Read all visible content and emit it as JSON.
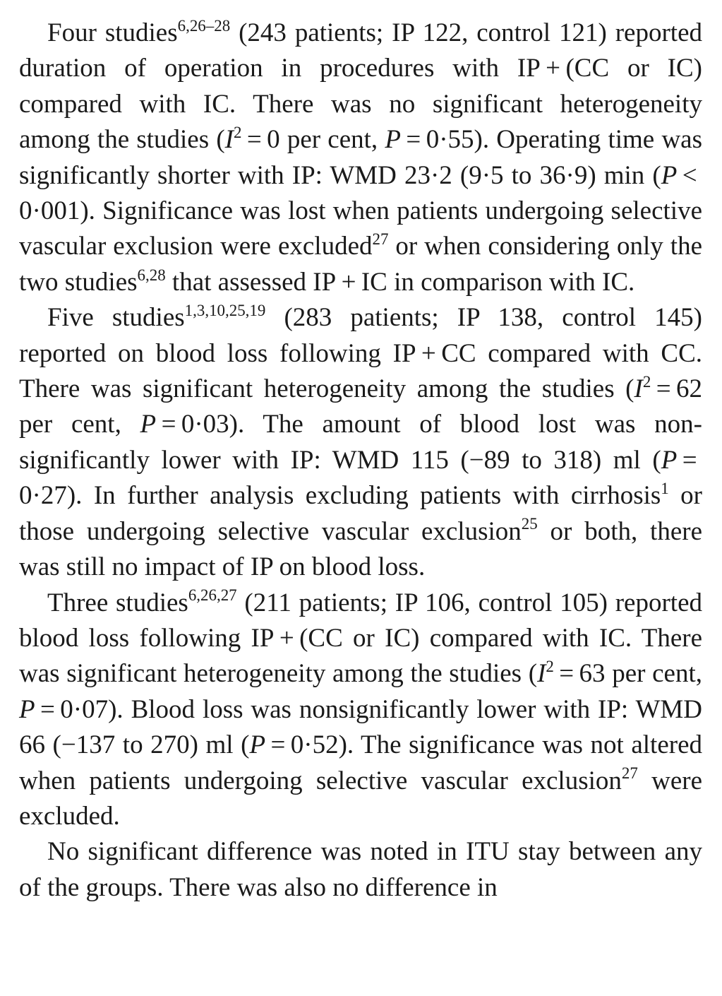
{
  "paragraphs": [
    [
      {
        "t": "Four studies"
      },
      {
        "sup": "6,26–28"
      },
      {
        "t": " (243 patients; IP 122, control 121) reported duration of operation in procedures with IP + (CC or IC) compared with IC. There was no sig­nificant heterogeneity among the studies ("
      },
      {
        "i": "I"
      },
      {
        "sup": "2"
      },
      {
        "t": " = 0 per cent, "
      },
      {
        "i": "P"
      },
      {
        "t": " = 0·55). Operating time was significantly shorter with IP: WMD 23·2 (9·5 to 36·9) min ("
      },
      {
        "i": "P"
      },
      {
        "t": " < 0·001). Significance was lost when patients undergoing selective vascular exclusion were excluded"
      },
      {
        "sup": "27"
      },
      {
        "t": " or when considering only the two studies"
      },
      {
        "sup": "6,28"
      },
      {
        "t": " that assessed IP + IC in comparison with IC."
      }
    ],
    [
      {
        "t": "Five studies"
      },
      {
        "sup": "1,3,10,25,19"
      },
      {
        "t": " (283 patients; IP 138, control 145) reported on blood loss following IP + CC compared with CC. There was significant heterogeneity among the studies ("
      },
      {
        "i": "I"
      },
      {
        "sup": "2"
      },
      {
        "t": " = 62 per cent, "
      },
      {
        "i": "P"
      },
      {
        "t": " = 0·03). The amount of blood lost was non-significantly lower with IP: WMD 115 (−89 to 318) ml ("
      },
      {
        "i": "P"
      },
      {
        "t": " = 0·27). In further analysis excluding patients with cirrhosis"
      },
      {
        "sup": "1"
      },
      {
        "t": " or those undergoing selective vascular exclusion"
      },
      {
        "sup": "25"
      },
      {
        "t": " or both, there was still no impact of IP on blood loss."
      }
    ],
    [
      {
        "t": "Three studies"
      },
      {
        "sup": "6,26,27"
      },
      {
        "t": " (211 patients; IP 106, control 105) reported blood loss following IP + (CC or IC) compared with IC. There was significant heterogeneity among the studies ("
      },
      {
        "i": "I"
      },
      {
        "sup": "2"
      },
      {
        "t": " = 63 per cent, "
      },
      {
        "i": "P"
      },
      {
        "t": " = 0·07). Blood loss was non­significantly lower with IP: WMD 66 (−137 to 270) ml ("
      },
      {
        "i": "P"
      },
      {
        "t": " = 0·52). The significance was not altered when patients undergoing selective vascular exclusion"
      },
      {
        "sup": "27"
      },
      {
        "t": " were excluded."
      }
    ],
    [
      {
        "t": "No significant difference was noted in ITU stay between any of the groups. There was also no difference in"
      }
    ]
  ]
}
